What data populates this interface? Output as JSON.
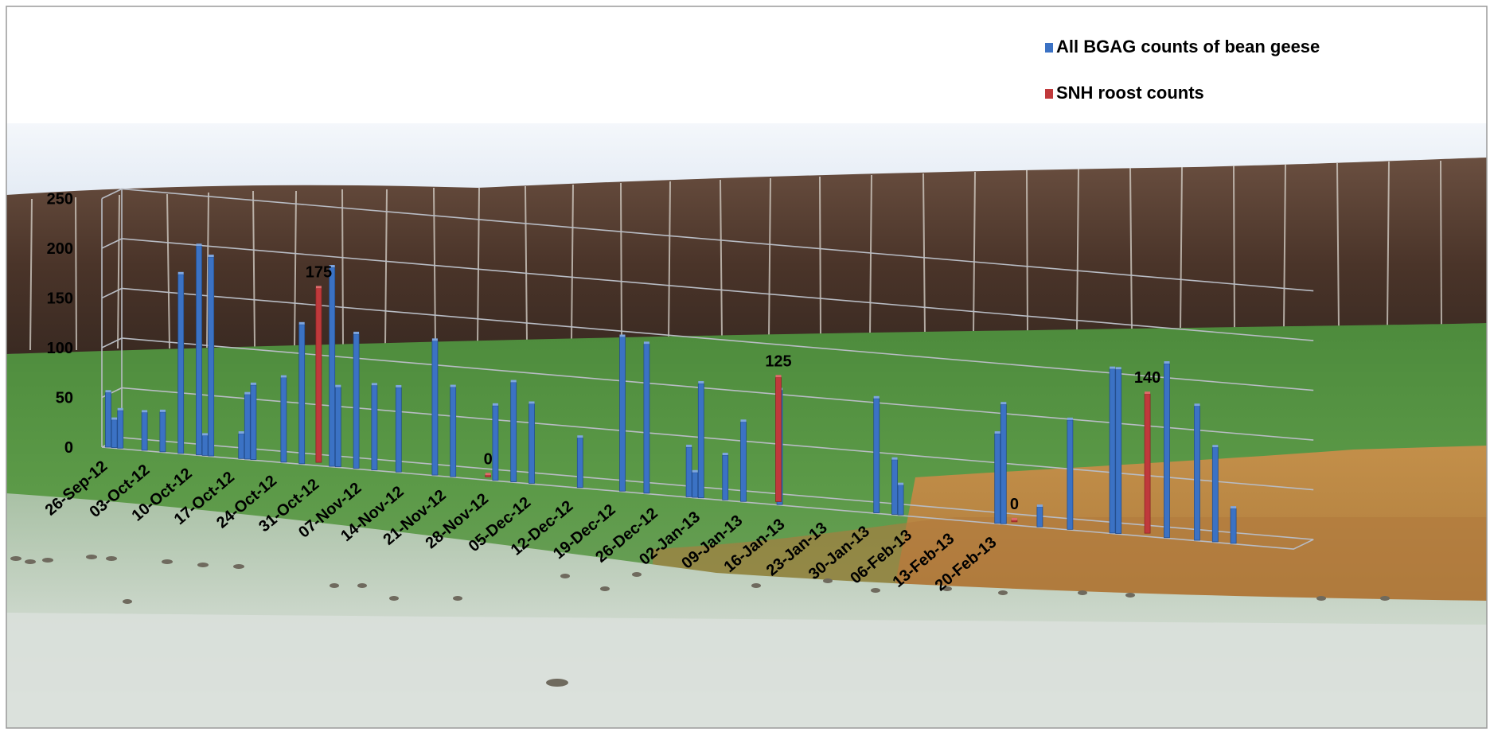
{
  "chart_data": {
    "type": "bar",
    "subtype": "3d-clustered-bar-over-photo",
    "background": "photograph of farmland with a belt of trees and bean geese feeding in a frosty field",
    "y_axis": {
      "ticks": [
        "0",
        "50",
        "100",
        "150",
        "200",
        "250"
      ],
      "ylim": [
        0,
        250
      ]
    },
    "x_tick_labels": [
      "26-Sep-12",
      "03-Oct-12",
      "10-Oct-12",
      "17-Oct-12",
      "24-Oct-12",
      "31-Oct-12",
      "07-Nov-12",
      "14-Nov-12",
      "21-Nov-12",
      "28-Nov-12",
      "05-Dec-12",
      "12-Dec-12",
      "19-Dec-12",
      "26-Dec-12",
      "02-Jan-13",
      "09-Jan-13",
      "16-Jan-13",
      "23-Jan-13",
      "30-Jan-13",
      "06-Feb-13",
      "13-Feb-13",
      "20-Feb-13"
    ],
    "legend": {
      "position": "top-right"
    },
    "series": [
      {
        "name": "All BGAG counts of bean geese",
        "color": "#3b72c4",
        "points": [
          {
            "date": "2012-09-26",
            "value": 55
          },
          {
            "date": "2012-09-27",
            "value": 28
          },
          {
            "date": "2012-09-28",
            "value": 38
          },
          {
            "date": "2012-10-02",
            "value": 38
          },
          {
            "date": "2012-10-05",
            "value": 40
          },
          {
            "date": "2012-10-08",
            "value": 180
          },
          {
            "date": "2012-10-11",
            "value": 210
          },
          {
            "date": "2012-10-12",
            "value": 20
          },
          {
            "date": "2012-10-13",
            "value": 200
          },
          {
            "date": "2012-10-18",
            "value": 25
          },
          {
            "date": "2012-10-19",
            "value": 65
          },
          {
            "date": "2012-10-20",
            "value": 75
          },
          {
            "date": "2012-10-25",
            "value": 85
          },
          {
            "date": "2012-10-28",
            "value": 140
          },
          {
            "date": "2012-11-02",
            "value": 200
          },
          {
            "date": "2012-11-03",
            "value": 80
          },
          {
            "date": "2012-11-06",
            "value": 135
          },
          {
            "date": "2012-11-09",
            "value": 85
          },
          {
            "date": "2012-11-13",
            "value": 85
          },
          {
            "date": "2012-11-19",
            "value": 135
          },
          {
            "date": "2012-11-22",
            "value": 90
          },
          {
            "date": "2012-11-29",
            "value": 75
          },
          {
            "date": "2012-12-02",
            "value": 100
          },
          {
            "date": "2012-12-05",
            "value": 80
          },
          {
            "date": "2012-12-13",
            "value": 50
          },
          {
            "date": "2012-12-20",
            "value": 155
          },
          {
            "date": "2012-12-24",
            "value": 150
          },
          {
            "date": "2012-12-31",
            "value": 50
          },
          {
            "date": "2013-01-01",
            "value": 25
          },
          {
            "date": "2013-01-02",
            "value": 115
          },
          {
            "date": "2013-01-06",
            "value": 45
          },
          {
            "date": "2013-01-09",
            "value": 80
          },
          {
            "date": "2013-01-15",
            "value": 115
          },
          {
            "date": "2013-01-31",
            "value": 115
          },
          {
            "date": "2013-02-03",
            "value": 55
          },
          {
            "date": "2013-02-04",
            "value": 30
          },
          {
            "date": "2013-02-20",
            "value": 90
          },
          {
            "date": "2013-02-21",
            "value": 120
          },
          {
            "date": "2013-02-27",
            "value": 20
          },
          {
            "date": "2013-03-04",
            "value": 110
          },
          {
            "date": "2013-03-11",
            "value": 165
          },
          {
            "date": "2013-03-12",
            "value": 165
          },
          {
            "date": "2013-03-20",
            "value": 175
          },
          {
            "date": "2013-03-25",
            "value": 135
          },
          {
            "date": "2013-03-28",
            "value": 95
          },
          {
            "date": "2013-03-31",
            "value": 35
          }
        ]
      },
      {
        "name": "SNH roost counts",
        "color": "#c0393b",
        "points": [
          {
            "date": "2012-10-30",
            "value": 175,
            "label": "175"
          },
          {
            "date": "2012-11-27",
            "value": 0,
            "label": "0"
          },
          {
            "date": "2013-01-14",
            "value": 125,
            "label": "125"
          },
          {
            "date": "2013-02-22",
            "value": 0,
            "label": "0"
          },
          {
            "date": "2013-03-16",
            "value": 140,
            "label": "140"
          }
        ]
      }
    ]
  }
}
